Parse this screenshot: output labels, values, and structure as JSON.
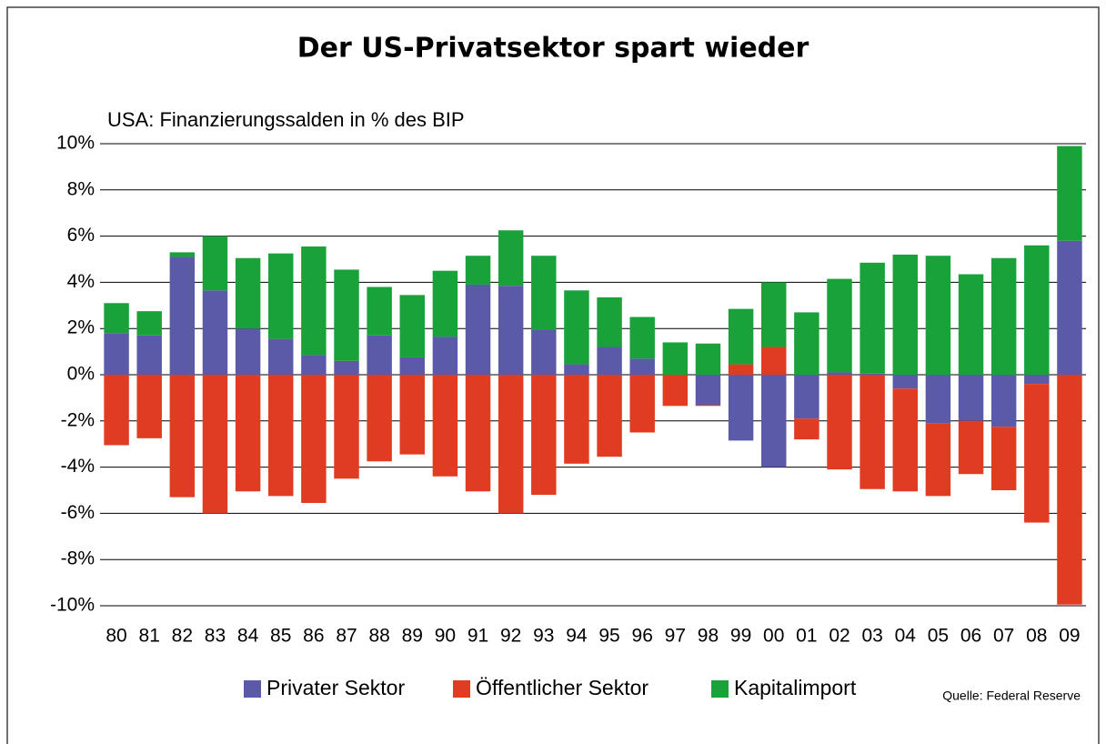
{
  "chart_data": {
    "type": "bar",
    "stacked": true,
    "title": "Der US-Privatsektor spart wieder",
    "subtitle": "USA: Finanzierungssalden in % des BIP",
    "source": "Quelle: Federal Reserve",
    "categories": [
      "80",
      "81",
      "82",
      "83",
      "84",
      "85",
      "86",
      "87",
      "88",
      "89",
      "90",
      "91",
      "92",
      "93",
      "94",
      "95",
      "96",
      "97",
      "98",
      "99",
      "00",
      "01",
      "02",
      "03",
      "04",
      "05",
      "06",
      "07",
      "08",
      "09"
    ],
    "series": [
      {
        "name": "Privater Sektor",
        "color": "#5b5aa8",
        "values": [
          1.8,
          1.7,
          5.1,
          3.65,
          2.0,
          1.55,
          0.85,
          0.6,
          1.7,
          0.75,
          1.65,
          3.9,
          3.85,
          1.95,
          0.45,
          1.2,
          0.7,
          0,
          -1.3,
          -2.85,
          -4.0,
          -1.9,
          0.1,
          0.05,
          -0.6,
          -2.1,
          -2.0,
          -2.25,
          -0.4,
          5.8
        ]
      },
      {
        "name": "Öffentlicher Sektor",
        "color": "#e03c22",
        "values": [
          -3.05,
          -2.75,
          -5.3,
          -6.0,
          -5.05,
          -5.25,
          -5.55,
          -4.5,
          -3.75,
          -3.45,
          -4.4,
          -5.05,
          -6.0,
          -5.2,
          -3.85,
          -3.55,
          -2.5,
          -1.35,
          -0.05,
          0.45,
          1.2,
          -0.9,
          -4.1,
          -4.95,
          -4.45,
          -3.15,
          -2.3,
          -2.75,
          -6.0,
          -9.95
        ]
      },
      {
        "name": "Kapitalimport",
        "color": "#19a23a",
        "values": [
          1.3,
          1.05,
          0.2,
          2.35,
          3.05,
          3.7,
          4.7,
          3.95,
          2.1,
          2.7,
          2.85,
          1.25,
          2.4,
          3.2,
          3.2,
          2.15,
          1.8,
          1.4,
          1.35,
          2.4,
          2.8,
          2.7,
          4.05,
          4.8,
          5.2,
          5.15,
          4.35,
          5.05,
          5.6,
          4.1
        ]
      }
    ],
    "ylim": [
      -10,
      10
    ],
    "yticks": [
      {
        "value": -10,
        "label": "-10%"
      },
      {
        "value": -8,
        "label": "-8%"
      },
      {
        "value": -6,
        "label": "-6%"
      },
      {
        "value": -4,
        "label": "-4%"
      },
      {
        "value": -2,
        "label": "-2%"
      },
      {
        "value": 0,
        "label": "0%"
      },
      {
        "value": 2,
        "label": "2%"
      },
      {
        "value": 4,
        "label": "4%"
      },
      {
        "value": 6,
        "label": "6%"
      },
      {
        "value": 8,
        "label": "8%"
      },
      {
        "value": 10,
        "label": "10%"
      }
    ],
    "grid": true,
    "legend": "bottom"
  }
}
